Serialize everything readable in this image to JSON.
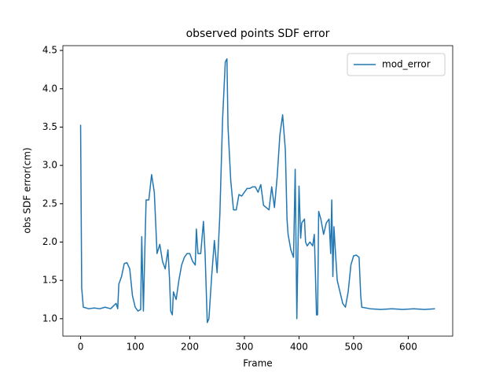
{
  "chart_data": {
    "type": "line",
    "title": "observed points SDF error",
    "xlabel": "Frame",
    "ylabel": "obs SDF error(cm)",
    "x": [
      0,
      2,
      5,
      15,
      25,
      35,
      45,
      55,
      65,
      68,
      70,
      75,
      80,
      85,
      90,
      95,
      100,
      105,
      110,
      112,
      115,
      118,
      120,
      125,
      130,
      135,
      140,
      145,
      150,
      155,
      160,
      163,
      165,
      168,
      170,
      175,
      180,
      185,
      190,
      195,
      200,
      205,
      210,
      212,
      215,
      220,
      225,
      228,
      232,
      235,
      240,
      245,
      250,
      255,
      260,
      265,
      268,
      270,
      275,
      280,
      285,
      290,
      295,
      300,
      305,
      310,
      315,
      320,
      325,
      330,
      335,
      340,
      345,
      350,
      355,
      360,
      365,
      370,
      375,
      378,
      380,
      385,
      390,
      393,
      396,
      400,
      403,
      405,
      410,
      412,
      415,
      420,
      425,
      428,
      430,
      432,
      434,
      436,
      440,
      445,
      450,
      455,
      458,
      460,
      462,
      464,
      466,
      470,
      475,
      480,
      485,
      490,
      495,
      500,
      505,
      510,
      513,
      515,
      530,
      550,
      570,
      590,
      610,
      630,
      649
    ],
    "series": [
      {
        "name": "mod_error",
        "color": "#1f77b4",
        "values": [
          3.53,
          1.4,
          1.15,
          1.13,
          1.14,
          1.13,
          1.15,
          1.13,
          1.2,
          1.13,
          1.45,
          1.55,
          1.72,
          1.73,
          1.65,
          1.3,
          1.15,
          1.1,
          1.12,
          2.07,
          1.1,
          2.0,
          2.55,
          2.55,
          2.88,
          2.65,
          1.85,
          1.97,
          1.75,
          1.65,
          1.9,
          1.5,
          1.1,
          1.05,
          1.35,
          1.25,
          1.5,
          1.7,
          1.8,
          1.85,
          1.85,
          1.75,
          1.7,
          2.17,
          1.85,
          1.85,
          2.27,
          1.85,
          0.95,
          1.0,
          1.55,
          2.02,
          1.6,
          2.35,
          3.6,
          4.35,
          4.39,
          3.5,
          2.8,
          2.42,
          2.42,
          2.62,
          2.6,
          2.65,
          2.7,
          2.7,
          2.72,
          2.72,
          2.65,
          2.75,
          2.48,
          2.45,
          2.42,
          2.72,
          2.45,
          2.85,
          3.4,
          3.66,
          3.2,
          2.3,
          2.1,
          1.9,
          1.8,
          2.95,
          1.0,
          2.73,
          2.05,
          2.25,
          2.3,
          2.0,
          1.95,
          2.0,
          1.95,
          2.1,
          1.6,
          1.05,
          1.05,
          2.4,
          2.3,
          2.1,
          2.25,
          2.3,
          1.85,
          2.55,
          1.55,
          2.2,
          1.95,
          1.5,
          1.35,
          1.2,
          1.15,
          1.35,
          1.7,
          1.82,
          1.83,
          1.8,
          1.3,
          1.15,
          1.13,
          1.12,
          1.13,
          1.12,
          1.13,
          1.12,
          1.13
        ]
      }
    ],
    "xlim": [
      -32.45,
      681.45
    ],
    "xticks": [
      0,
      100,
      200,
      300,
      400,
      500,
      600
    ],
    "ylim": [
      0.7725,
      4.5625
    ],
    "yticks": [
      {
        "value": 1.0,
        "label": "1.0"
      },
      {
        "value": 1.5,
        "label": "1.5"
      },
      {
        "value": 2.0,
        "label": "2.0"
      },
      {
        "value": 2.5,
        "label": "2.5"
      },
      {
        "value": 3.0,
        "label": "3.0"
      },
      {
        "value": 3.5,
        "label": "3.5"
      },
      {
        "value": 4.0,
        "label": "4.0"
      },
      {
        "value": 4.5,
        "label": "4.5"
      }
    ],
    "legend": "upper right"
  }
}
